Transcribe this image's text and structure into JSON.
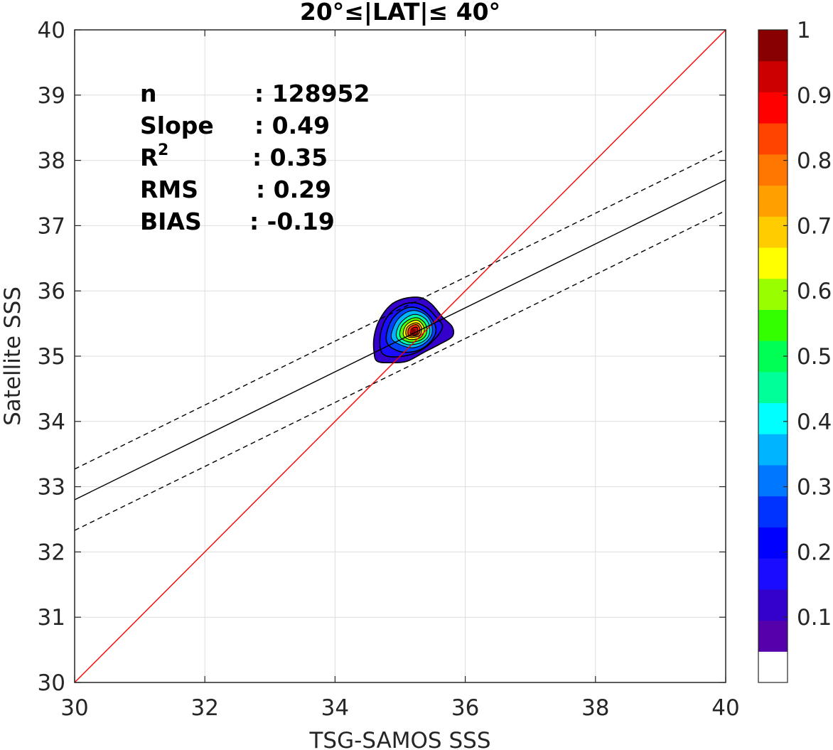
{
  "chart_data": {
    "type": "heatmap",
    "title": "20°≤|LAT|≤ 40°",
    "xlabel": "TSG-SAMOS SSS",
    "ylabel": "Satellite SSS",
    "xlim": [
      30,
      40
    ],
    "ylim": [
      30,
      40
    ],
    "xticks": [
      "30",
      "32",
      "34",
      "36",
      "38",
      "40"
    ],
    "yticks": [
      "30",
      "31",
      "32",
      "33",
      "34",
      "35",
      "36",
      "37",
      "38",
      "39",
      "40"
    ],
    "grid": true,
    "stats": [
      {
        "label": "n",
        "value": ": 128952"
      },
      {
        "label": "Slope",
        "value": ": 0.49"
      },
      {
        "label": "R",
        "sup": "2",
        "value": ": 0.35"
      },
      {
        "label": "RMS",
        "value": ": 0.29"
      },
      {
        "label": "BIAS",
        "value": ": -0.19"
      }
    ],
    "lines": [
      {
        "role": "one-to-one",
        "color": "#ff0000",
        "style": "solid",
        "x": [
          30,
          40
        ],
        "y": [
          30,
          40
        ]
      },
      {
        "role": "fit",
        "color": "#000000",
        "style": "solid",
        "x": [
          30,
          40
        ],
        "y": [
          32.8,
          37.7
        ]
      },
      {
        "role": "fit-upper",
        "color": "#000000",
        "style": "dashed",
        "x": [
          30,
          40
        ],
        "y": [
          33.27,
          38.17
        ]
      },
      {
        "role": "fit-lower",
        "color": "#000000",
        "style": "dashed",
        "x": [
          30,
          40
        ],
        "y": [
          32.33,
          37.23
        ]
      }
    ],
    "density": {
      "center": [
        35.2,
        35.38
      ],
      "contours": [
        {
          "level": 0.05,
          "color": "#3300cc",
          "points": [
            [
              34.6,
              35.05
            ],
            [
              34.6,
              35.3
            ],
            [
              34.68,
              35.55
            ],
            [
              34.85,
              35.78
            ],
            [
              35.05,
              35.88
            ],
            [
              35.3,
              35.9
            ],
            [
              35.48,
              35.8
            ],
            [
              35.65,
              35.6
            ],
            [
              35.8,
              35.45
            ],
            [
              35.8,
              35.3
            ],
            [
              35.6,
              35.18
            ],
            [
              35.35,
              35.05
            ],
            [
              35.1,
              34.92
            ],
            [
              34.85,
              34.9
            ],
            [
              34.65,
              34.92
            ]
          ]
        },
        {
          "level": 0.15,
          "color": "#1a0dff",
          "points": [
            [
              34.7,
              35.1
            ],
            [
              34.7,
              35.35
            ],
            [
              34.8,
              35.6
            ],
            [
              34.98,
              35.76
            ],
            [
              35.2,
              35.82
            ],
            [
              35.4,
              35.75
            ],
            [
              35.55,
              35.6
            ],
            [
              35.65,
              35.45
            ],
            [
              35.52,
              35.25
            ],
            [
              35.3,
              35.08
            ],
            [
              35.05,
              35.0
            ],
            [
              34.8,
              35.0
            ]
          ]
        },
        {
          "level": 0.25,
          "color": "#0044ff",
          "points": [
            [
              34.8,
              35.2
            ],
            [
              34.82,
              35.45
            ],
            [
              34.95,
              35.65
            ],
            [
              35.15,
              35.75
            ],
            [
              35.35,
              35.7
            ],
            [
              35.5,
              35.55
            ],
            [
              35.55,
              35.38
            ],
            [
              35.45,
              35.2
            ],
            [
              35.25,
              35.08
            ],
            [
              35.0,
              35.07
            ]
          ]
        },
        {
          "level": 0.35,
          "color": "#00b4ff",
          "points": [
            [
              34.88,
              35.25
            ],
            [
              34.9,
              35.45
            ],
            [
              35.02,
              35.62
            ],
            [
              35.2,
              35.7
            ],
            [
              35.38,
              35.64
            ],
            [
              35.48,
              35.5
            ],
            [
              35.48,
              35.32
            ],
            [
              35.35,
              35.18
            ],
            [
              35.15,
              35.13
            ]
          ]
        },
        {
          "level": 0.45,
          "color": "#00ffaa",
          "points": [
            [
              34.95,
              35.28
            ],
            [
              34.97,
              35.45
            ],
            [
              35.08,
              35.58
            ],
            [
              35.23,
              35.64
            ],
            [
              35.38,
              35.58
            ],
            [
              35.45,
              35.45
            ],
            [
              35.43,
              35.3
            ],
            [
              35.3,
              35.2
            ],
            [
              35.1,
              35.18
            ]
          ]
        },
        {
          "level": 0.55,
          "color": "#55ff00",
          "points": [
            [
              35.0,
              35.3
            ],
            [
              35.02,
              35.45
            ],
            [
              35.12,
              35.55
            ],
            [
              35.25,
              35.59
            ],
            [
              35.36,
              35.53
            ],
            [
              35.41,
              35.42
            ],
            [
              35.38,
              35.3
            ],
            [
              35.27,
              35.23
            ],
            [
              35.12,
              35.22
            ]
          ]
        },
        {
          "level": 0.65,
          "color": "#ffff00",
          "points": [
            [
              35.05,
              35.32
            ],
            [
              35.07,
              35.44
            ],
            [
              35.15,
              35.52
            ],
            [
              35.26,
              35.55
            ],
            [
              35.34,
              35.49
            ],
            [
              35.37,
              35.4
            ],
            [
              35.33,
              35.3
            ],
            [
              35.24,
              35.26
            ],
            [
              35.13,
              35.26
            ]
          ]
        },
        {
          "level": 0.75,
          "color": "#ffa500",
          "points": [
            [
              35.09,
              35.33
            ],
            [
              35.1,
              35.43
            ],
            [
              35.17,
              35.49
            ],
            [
              35.26,
              35.51
            ],
            [
              35.32,
              35.46
            ],
            [
              35.33,
              35.38
            ],
            [
              35.29,
              35.31
            ],
            [
              35.21,
              35.29
            ],
            [
              35.14,
              35.29
            ]
          ]
        },
        {
          "level": 0.85,
          "color": "#ff3300",
          "points": [
            [
              35.12,
              35.34
            ],
            [
              35.13,
              35.42
            ],
            [
              35.19,
              35.47
            ],
            [
              35.26,
              35.48
            ],
            [
              35.3,
              35.43
            ],
            [
              35.3,
              35.37
            ],
            [
              35.26,
              35.32
            ],
            [
              35.2,
              35.31
            ],
            [
              35.15,
              35.31
            ]
          ]
        },
        {
          "level": 0.95,
          "color": "#cc0000",
          "points": [
            [
              35.16,
              35.35
            ],
            [
              35.17,
              35.41
            ],
            [
              35.21,
              35.44
            ],
            [
              35.26,
              35.44
            ],
            [
              35.27,
              35.4
            ],
            [
              35.27,
              35.36
            ],
            [
              35.24,
              35.33
            ],
            [
              35.19,
              35.33
            ]
          ]
        }
      ]
    },
    "colorbar": {
      "ticks": [
        "0.1",
        "0.2",
        "0.3",
        "0.4",
        "0.5",
        "0.6",
        "0.7",
        "0.8",
        "0.9",
        "1"
      ],
      "colors": [
        "#ffffff",
        "#5500aa",
        "#3300cc",
        "#1a0dff",
        "#0000ff",
        "#0033ff",
        "#0077ff",
        "#00b4ff",
        "#00ffff",
        "#00ff99",
        "#00ff55",
        "#33ff00",
        "#99ff00",
        "#ffff00",
        "#ffcc00",
        "#ffa000",
        "#ff7700",
        "#ff4400",
        "#ff0000",
        "#cc0000",
        "#880000"
      ],
      "range": [
        0,
        1
      ]
    }
  }
}
